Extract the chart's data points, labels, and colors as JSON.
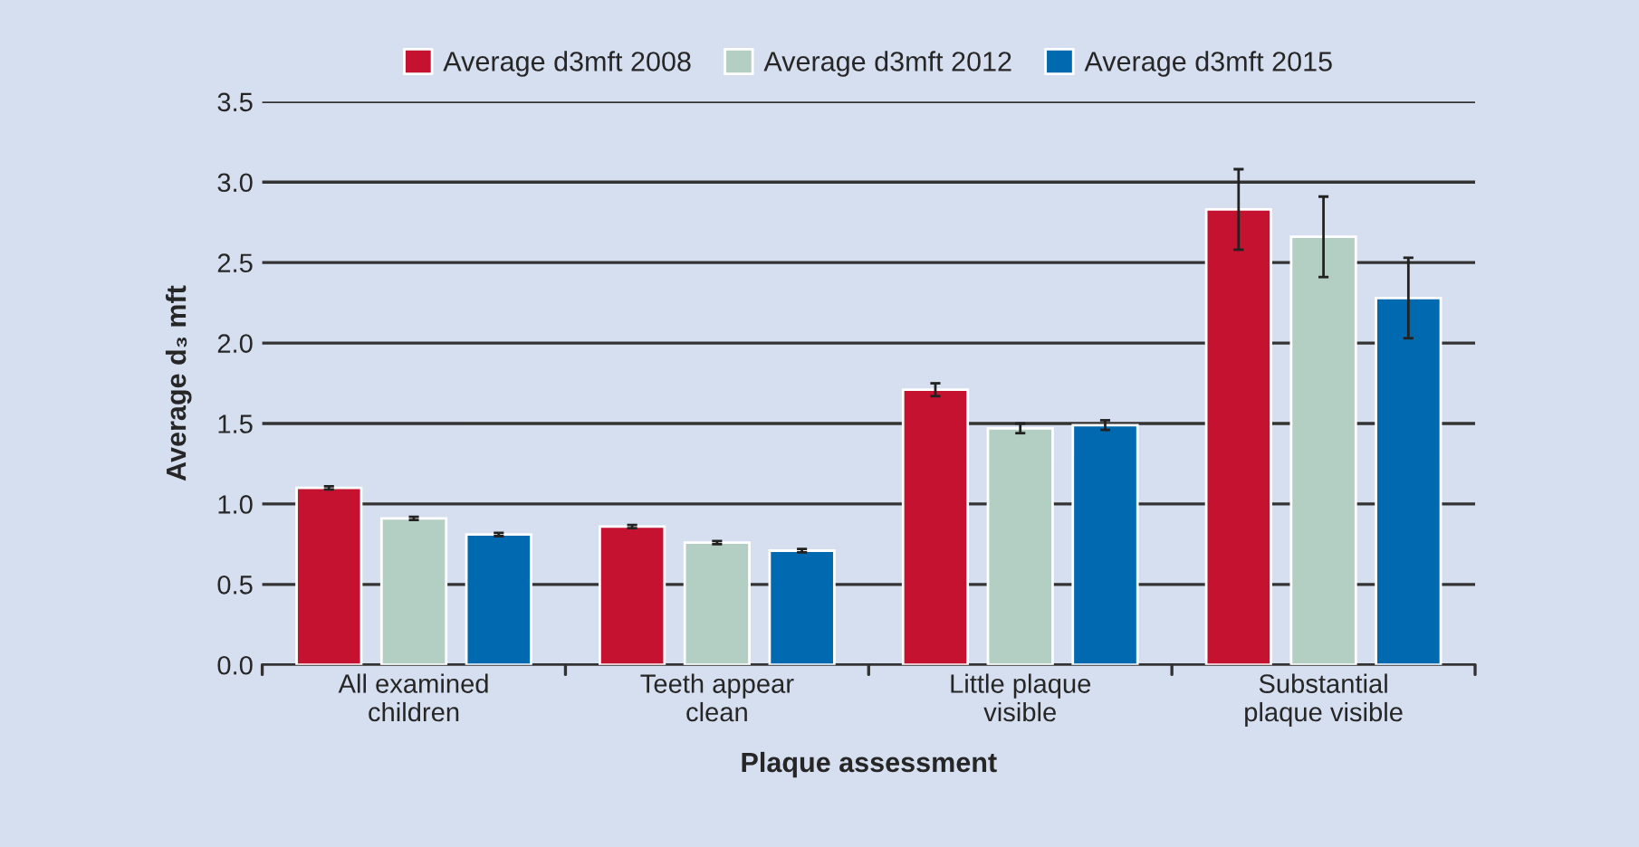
{
  "chart_data": {
    "type": "bar",
    "xlabel": "Plaque assessment",
    "ylabel": "Average d₃ mft",
    "categories": [
      "All examined\nchildren",
      "Teeth appear\nclean",
      "Little plaque\nvisible",
      "Substantial\nplaque visible"
    ],
    "series": [
      {
        "name": "Average d3mft 2008",
        "color": "#c41230",
        "values": [
          1.1,
          0.86,
          1.71,
          2.83
        ],
        "errors": [
          0.01,
          0.01,
          0.04,
          0.25
        ]
      },
      {
        "name": "Average d3mft 2012",
        "color": "#b3cfc3",
        "values": [
          0.91,
          0.76,
          1.47,
          2.66
        ],
        "errors": [
          0.01,
          0.01,
          0.03,
          0.25
        ]
      },
      {
        "name": "Average d3mft 2015",
        "color": "#0069b0",
        "values": [
          0.81,
          0.71,
          1.49,
          2.28
        ],
        "errors": [
          0.01,
          0.01,
          0.03,
          0.25
        ]
      }
    ],
    "ylim": [
      0,
      3.5
    ],
    "yticks": [
      {
        "value": 0,
        "label": "0.0"
      },
      {
        "value": 0.5,
        "label": "0.5"
      },
      {
        "value": 1,
        "label": "1.0"
      },
      {
        "value": 1.5,
        "label": "1.5"
      },
      {
        "value": 2,
        "label": "2.0"
      },
      {
        "value": 2.5,
        "label": "2.5"
      },
      {
        "value": 3,
        "label": "3.0"
      },
      {
        "value": 3.5,
        "label": "3.5"
      }
    ],
    "grid": "y",
    "legend": "top"
  }
}
